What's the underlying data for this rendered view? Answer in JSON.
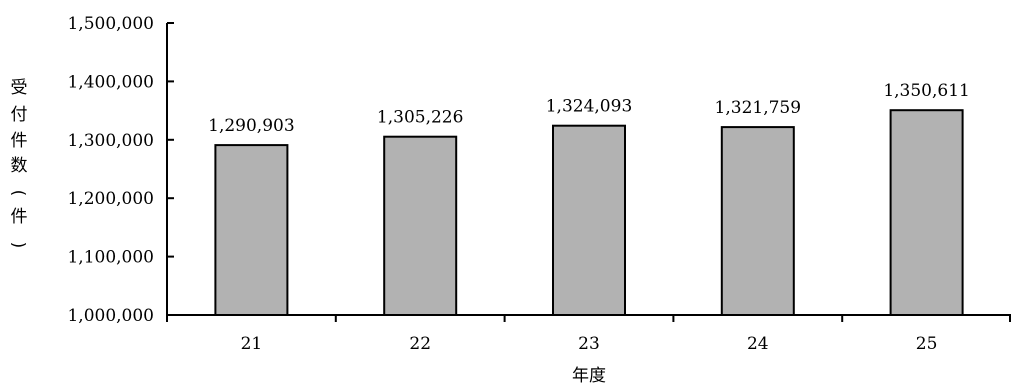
{
  "chart_data": {
    "type": "bar",
    "categories": [
      "21",
      "22",
      "23",
      "24",
      "25"
    ],
    "values": [
      1290903,
      1305226,
      1324093,
      1321759,
      1350611
    ],
    "value_labels": [
      "1,290,903",
      "1,305,226",
      "1,324,093",
      "1,321,759",
      "1,350,611"
    ],
    "title": "",
    "xlabel": "年度",
    "ylabel": "受付件数（件）",
    "ylabel_chars": [
      "受",
      "付",
      "件",
      "数",
      "（",
      "件",
      "）"
    ],
    "ylim": [
      1000000,
      1500000
    ],
    "yticks": [
      1000000,
      1100000,
      1200000,
      1300000,
      1400000,
      1500000
    ],
    "ytick_labels": [
      "1,000,000",
      "1,100,000",
      "1,200,000",
      "1,300,000",
      "1,400,000",
      "1,500,000"
    ],
    "grid": false,
    "legend": "none",
    "bar_color": "#b2b2b2",
    "bar_edge_color": "#000000"
  }
}
